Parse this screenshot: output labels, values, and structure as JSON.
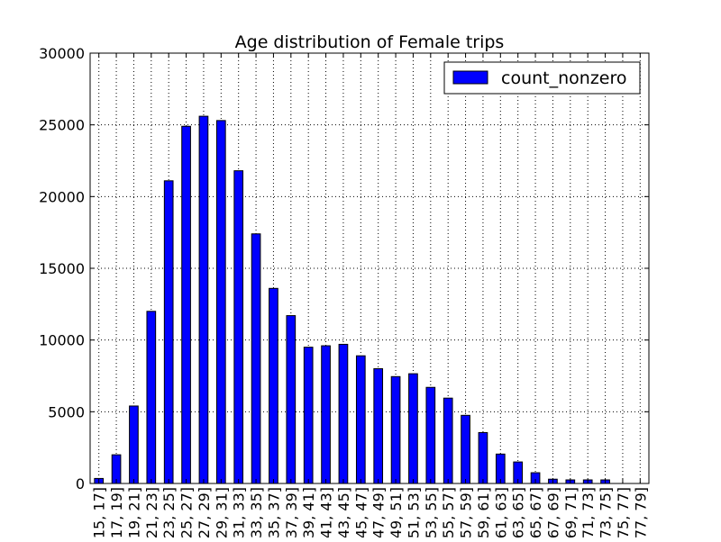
{
  "chart_data": {
    "type": "bar",
    "title": "Age distribution of Female trips",
    "xlabel": "",
    "ylabel": "",
    "ylim": [
      0,
      30000
    ],
    "yticks": [
      "0",
      "5000",
      "10000",
      "15000",
      "20000",
      "25000",
      "30000"
    ],
    "grid": true,
    "legend_position": "top-right",
    "categories": [
      "[15, 17]",
      "[17, 19]",
      "[19, 21]",
      "[21, 23]",
      "[23, 25]",
      "[25, 27]",
      "[27, 29]",
      "[29, 31]",
      "[31, 33]",
      "[33, 35]",
      "[35, 37]",
      "[37, 39]",
      "[39, 41]",
      "[41, 43]",
      "[43, 45]",
      "[45, 47]",
      "[47, 49]",
      "[49, 51]",
      "[51, 53]",
      "[53, 55]",
      "[55, 57]",
      "[57, 59]",
      "[59, 61]",
      "[61, 63]",
      "[63, 65]",
      "[65, 67]",
      "[67, 69]",
      "[69, 71]",
      "[71, 73]",
      "[73, 75]",
      "[75, 77]",
      "[77, 79]"
    ],
    "series": [
      {
        "name": "count_nonzero",
        "color": "#0000ff",
        "values": [
          350,
          2000,
          5400,
          12000,
          21100,
          24900,
          25600,
          25300,
          21800,
          17400,
          13600,
          11700,
          9500,
          9600,
          9700,
          8900,
          8000,
          7450,
          7650,
          6700,
          5950,
          4750,
          3550,
          2050,
          1500,
          750,
          300,
          250,
          250,
          250,
          0,
          0
        ]
      }
    ]
  }
}
